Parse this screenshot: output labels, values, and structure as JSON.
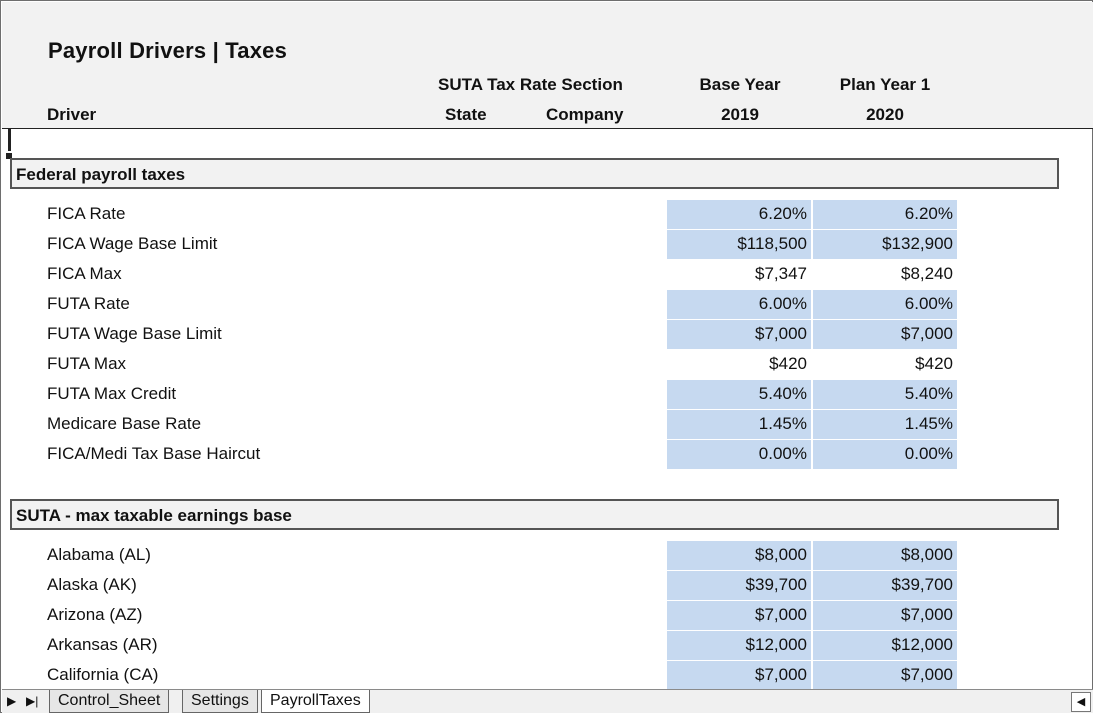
{
  "sheet": {
    "title": "Payroll Drivers | Taxes",
    "headers": {
      "driver": "Driver",
      "suta_section": "SUTA Tax Rate Section",
      "state": "State",
      "company": "Company",
      "base_year_label": "Base Year",
      "base_year": "2019",
      "plan_year_label": "Plan Year 1",
      "plan_year": "2020"
    },
    "colors": {
      "input_fill": "#c6d9f0",
      "header_fill": "#f2f2f2"
    },
    "federal": {
      "title": "Federal payroll taxes",
      "rows": [
        {
          "label": "FICA Rate",
          "v2019": "6.20%",
          "v2020": "6.20%",
          "input": true
        },
        {
          "label": "FICA Wage Base Limit",
          "v2019": "$118,500",
          "v2020": "$132,900",
          "input": true
        },
        {
          "label": "FICA Max",
          "v2019": "$7,347",
          "v2020": "$8,240",
          "input": false
        },
        {
          "label": "FUTA Rate",
          "v2019": "6.00%",
          "v2020": "6.00%",
          "input": true
        },
        {
          "label": "FUTA Wage Base Limit",
          "v2019": "$7,000",
          "v2020": "$7,000",
          "input": true
        },
        {
          "label": "FUTA Max",
          "v2019": "$420",
          "v2020": "$420",
          "input": false
        },
        {
          "label": "FUTA Max Credit",
          "v2019": "5.40%",
          "v2020": "5.40%",
          "input": true
        },
        {
          "label": "Medicare Base Rate",
          "v2019": "1.45%",
          "v2020": "1.45%",
          "input": true
        },
        {
          "label": "FICA/Medi Tax Base Haircut",
          "v2019": "0.00%",
          "v2020": "0.00%",
          "input": true
        }
      ]
    },
    "suta": {
      "title": "SUTA - max taxable earnings base",
      "rows": [
        {
          "label": "Alabama (AL)",
          "v2019": "$8,000",
          "v2020": "$8,000",
          "input": true
        },
        {
          "label": "Alaska (AK)",
          "v2019": "$39,700",
          "v2020": "$39,700",
          "input": true
        },
        {
          "label": "Arizona (AZ)",
          "v2019": "$7,000",
          "v2020": "$7,000",
          "input": true
        },
        {
          "label": "Arkansas (AR)",
          "v2019": "$12,000",
          "v2020": "$12,000",
          "input": true
        },
        {
          "label": "California (CA)",
          "v2019": "$7,000",
          "v2020": "$7,000",
          "input": true
        }
      ]
    }
  },
  "tabs": {
    "nav_next": "▶",
    "nav_last": "▶|",
    "items": [
      {
        "label": "Control_Sheet",
        "active": false
      },
      {
        "label": "Settings",
        "active": false
      },
      {
        "label": "PayrollTaxes",
        "active": true
      }
    ],
    "scroll_left_icon": "◀"
  }
}
